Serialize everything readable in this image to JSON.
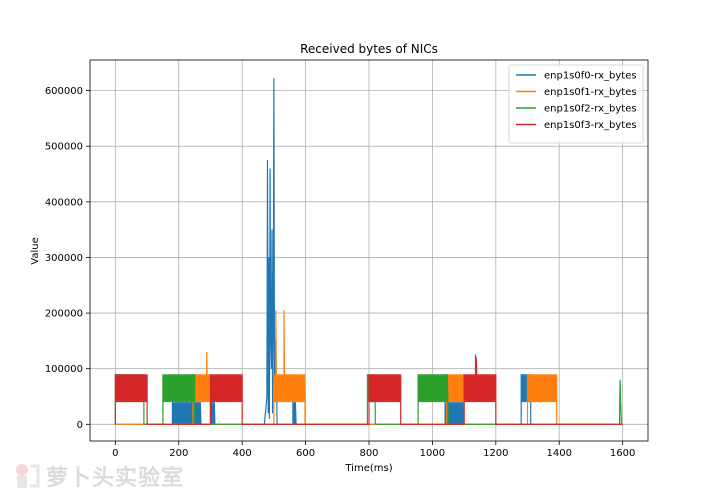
{
  "chart_data": {
    "type": "line",
    "title": "Received bytes of NICs",
    "xlabel": "Time(ms)",
    "ylabel": "Value",
    "xlim": [
      -80,
      1680
    ],
    "ylim": [
      -30000,
      655000
    ],
    "xticks": [
      0,
      200,
      400,
      600,
      800,
      1000,
      1200,
      1400,
      1600
    ],
    "yticks": [
      0,
      100000,
      200000,
      300000,
      400000,
      500000,
      600000
    ],
    "grid": true,
    "legend_position": "top-right",
    "series": [
      {
        "name": "enp1s0f0-rx_bytes",
        "color": "#1f77b4",
        "segments": [
          {
            "type": "osc",
            "start": 180,
            "end": 270,
            "low": 0,
            "high": 40000
          },
          {
            "type": "osc",
            "start": 300,
            "end": 315,
            "low": 0,
            "high": 40000
          },
          {
            "type": "osc",
            "start": 560,
            "end": 570,
            "low": 0,
            "high": 40000
          },
          {
            "type": "osc",
            "start": 1040,
            "end": 1100,
            "low": 0,
            "high": 40000
          },
          {
            "type": "osc",
            "start": 1280,
            "end": 1310,
            "low": 40000,
            "high": 90000
          },
          {
            "type": "points",
            "x": [
              470,
              478,
              480,
              482,
              484,
              486,
              488,
              490,
              492,
              494,
              496,
              498,
              500,
              502,
              504,
              506,
              508,
              510
            ],
            "y": [
              0,
              50000,
              475000,
              20000,
              300000,
              10000,
              460000,
              150000,
              100000,
              350000,
              20000,
              200000,
              622000,
              50000,
              150000,
              40000,
              90000,
              0
            ]
          }
        ]
      },
      {
        "name": "enp1s0f1-rx_bytes",
        "color": "#ff7f0e",
        "segments": [
          {
            "type": "osc",
            "start": 245,
            "end": 300,
            "low": 40000,
            "high": 90000
          },
          {
            "type": "points",
            "x": [
              285,
              288,
              291
            ],
            "y": [
              60000,
              130000,
              50000
            ]
          },
          {
            "type": "osc",
            "start": 500,
            "end": 598,
            "low": 40000,
            "high": 90000
          },
          {
            "type": "points",
            "x": [
              504,
              506,
              508,
              530,
              532,
              534
            ],
            "y": [
              60000,
              205000,
              50000,
              60000,
              205000,
              50000
            ]
          },
          {
            "type": "osc",
            "start": 1045,
            "end": 1100,
            "low": 40000,
            "high": 90000
          },
          {
            "type": "osc",
            "start": 1300,
            "end": 1392,
            "low": 40000,
            "high": 90000
          }
        ]
      },
      {
        "name": "enp1s0f2-rx_bytes",
        "color": "#2ca02c",
        "segments": [
          {
            "type": "osc",
            "start": 0,
            "end": 90,
            "low": 40000,
            "high": 90000
          },
          {
            "type": "osc",
            "start": 150,
            "end": 250,
            "low": 40000,
            "high": 90000
          },
          {
            "type": "osc",
            "start": 795,
            "end": 820,
            "low": 40000,
            "high": 90000
          },
          {
            "type": "osc",
            "start": 955,
            "end": 1050,
            "low": 40000,
            "high": 90000
          },
          {
            "type": "points",
            "x": [
              1590,
              1592,
              1594,
              1596
            ],
            "y": [
              0,
              80000,
              40000,
              0
            ]
          }
        ]
      },
      {
        "name": "enp1s0f3-rx_bytes",
        "color": "#d62728",
        "segments": [
          {
            "type": "osc",
            "start": 0,
            "end": 100,
            "low": 40000,
            "high": 90000
          },
          {
            "type": "osc",
            "start": 300,
            "end": 400,
            "low": 40000,
            "high": 90000
          },
          {
            "type": "osc",
            "start": 800,
            "end": 900,
            "low": 40000,
            "high": 90000
          },
          {
            "type": "osc",
            "start": 1100,
            "end": 1200,
            "low": 40000,
            "high": 90000
          },
          {
            "type": "points",
            "x": [
              1134,
              1136,
              1138,
              1140
            ],
            "y": [
              60000,
              125000,
              120000,
              60000
            ]
          }
        ]
      }
    ]
  },
  "watermark": {
    "text": "萝卜头实验室"
  }
}
